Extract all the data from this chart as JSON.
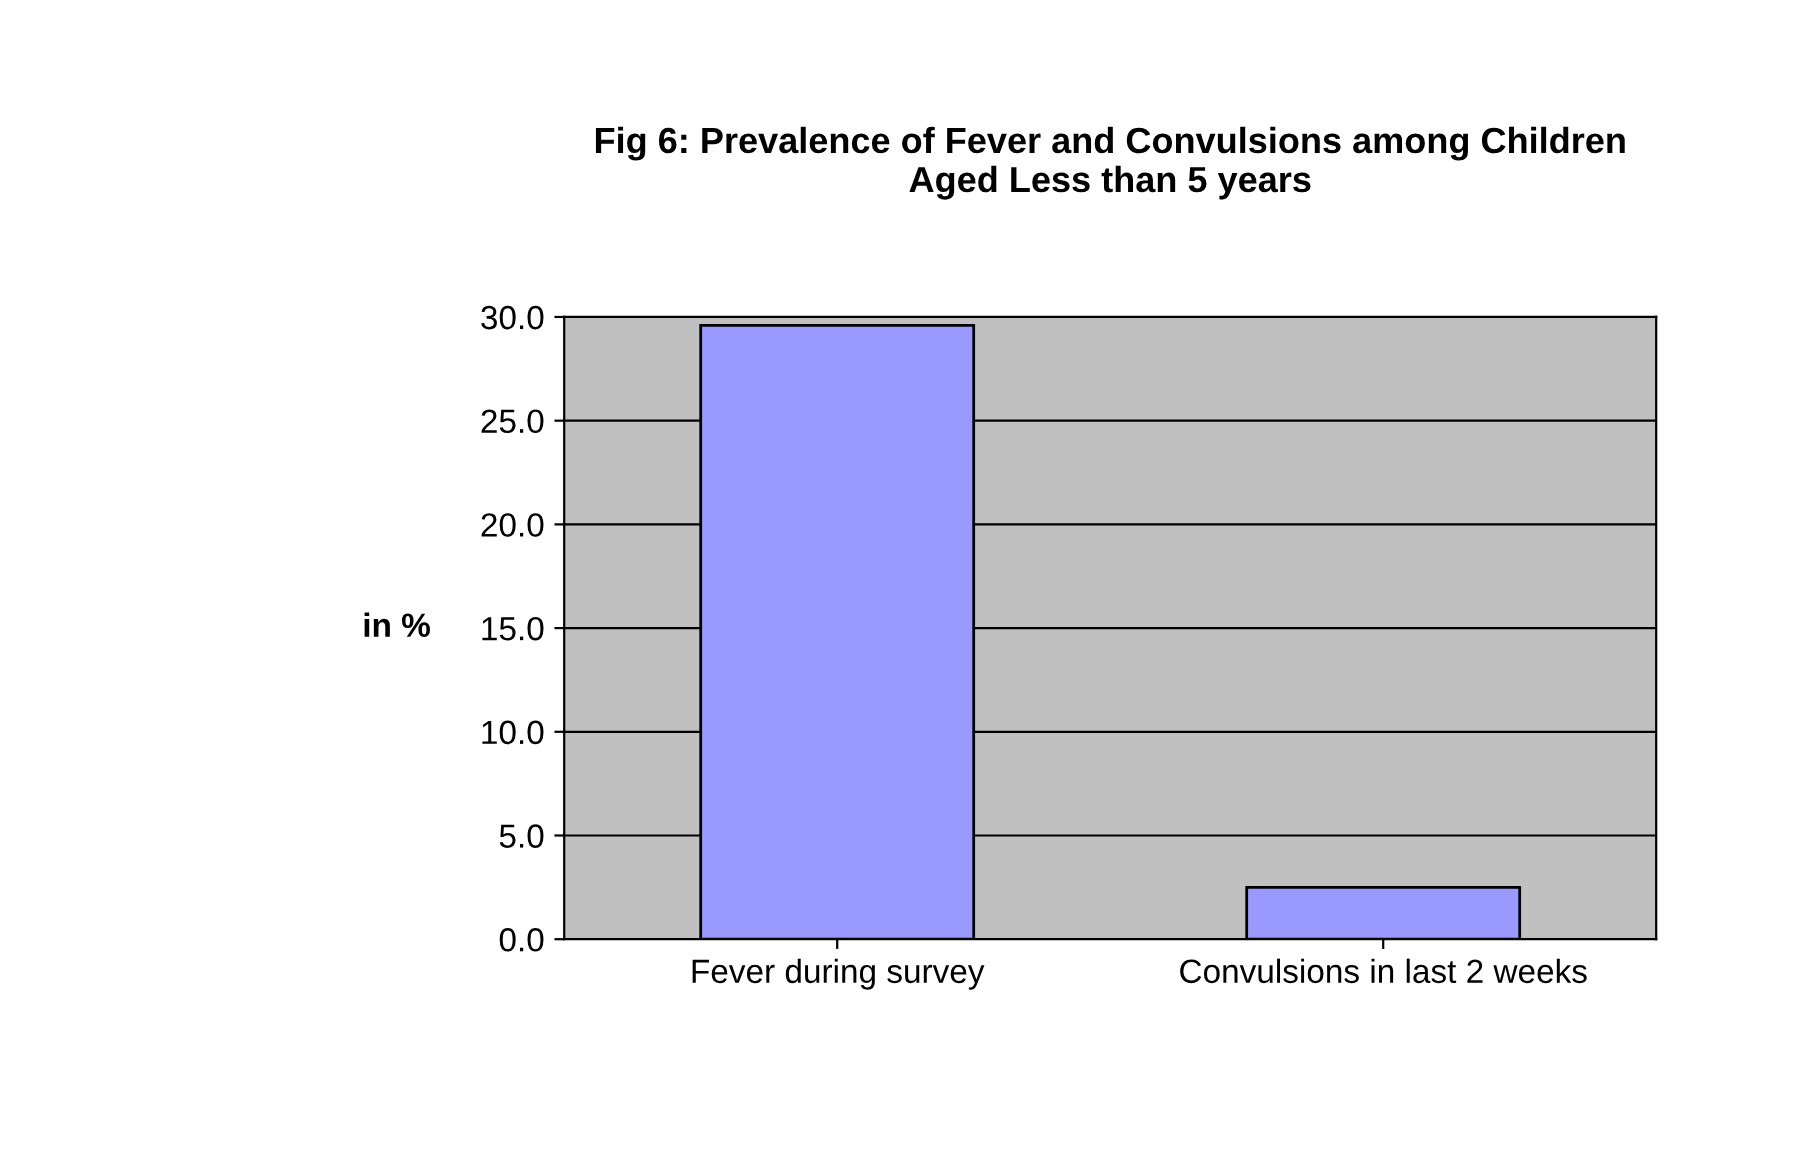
{
  "chart_data": {
    "type": "bar",
    "title": "Fig 6: Prevalence of Fever and Convulsions among Children\nAged Less than 5 years",
    "ylabel": "in %",
    "categories": [
      "Fever during survey",
      "Convulsions in last 2 weeks"
    ],
    "values": [
      29.6,
      2.5
    ],
    "color": "#9999ff",
    "ylim": [
      0,
      30
    ],
    "yticks": [
      {
        "value": 0,
        "label": "0.0"
      },
      {
        "value": 5,
        "label": "5.0"
      },
      {
        "value": 10,
        "label": "10.0"
      },
      {
        "value": 15,
        "label": "15.0"
      },
      {
        "value": 20,
        "label": "20.0"
      },
      {
        "value": 25,
        "label": "25.0"
      },
      {
        "value": 30,
        "label": "30.0"
      }
    ],
    "grid": "y",
    "legend": false
  }
}
